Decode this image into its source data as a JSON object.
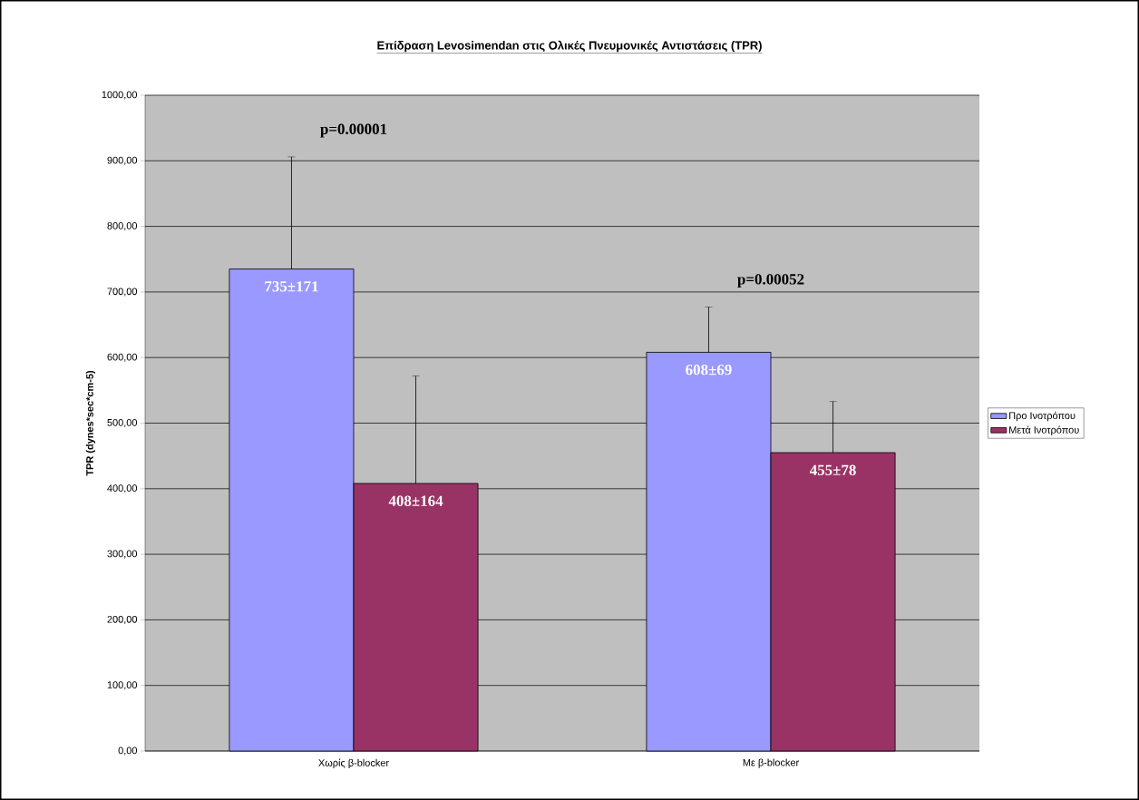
{
  "chart_data": {
    "type": "bar",
    "title": "Επίδραση Levosimendan στις Ολικές Πνευμονικές Αντιστάσεις (TPR)",
    "ylabel": "TPR (dynes*sec*cm-5)",
    "categories": [
      "Χωρίς β-blocker",
      "Με β-blocker"
    ],
    "series": [
      {
        "name": "Προ Ινοτρόπου",
        "color": "#9999ff",
        "values": [
          735,
          608
        ],
        "errors": [
          [
            735,
            906
          ],
          [
            608,
            677
          ]
        ],
        "value_labels": [
          "735±171",
          "608±69"
        ]
      },
      {
        "name": "Μετά Ινοτρόπου",
        "color": "#993366",
        "values": [
          408,
          455
        ],
        "errors": [
          [
            408,
            572
          ],
          [
            455,
            533
          ]
        ],
        "value_labels": [
          "408±164",
          "455±78"
        ]
      }
    ],
    "ylim": [
      0,
      1000
    ],
    "yticks": [
      {
        "value": 0,
        "label": "0,00"
      },
      {
        "value": 100,
        "label": "100,00"
      },
      {
        "value": 200,
        "label": "200,00"
      },
      {
        "value": 300,
        "label": "300,00"
      },
      {
        "value": 400,
        "label": "400,00"
      },
      {
        "value": 500,
        "label": "500,00"
      },
      {
        "value": 600,
        "label": "600,00"
      },
      {
        "value": 700,
        "label": "700,00"
      },
      {
        "value": 800,
        "label": "800,00"
      },
      {
        "value": 900,
        "label": "900,00"
      },
      {
        "value": 1000,
        "label": "1000,00"
      }
    ],
    "annotations": [
      "p=0.00001",
      "p=0.00052"
    ],
    "grid": "y",
    "legend": "right"
  }
}
